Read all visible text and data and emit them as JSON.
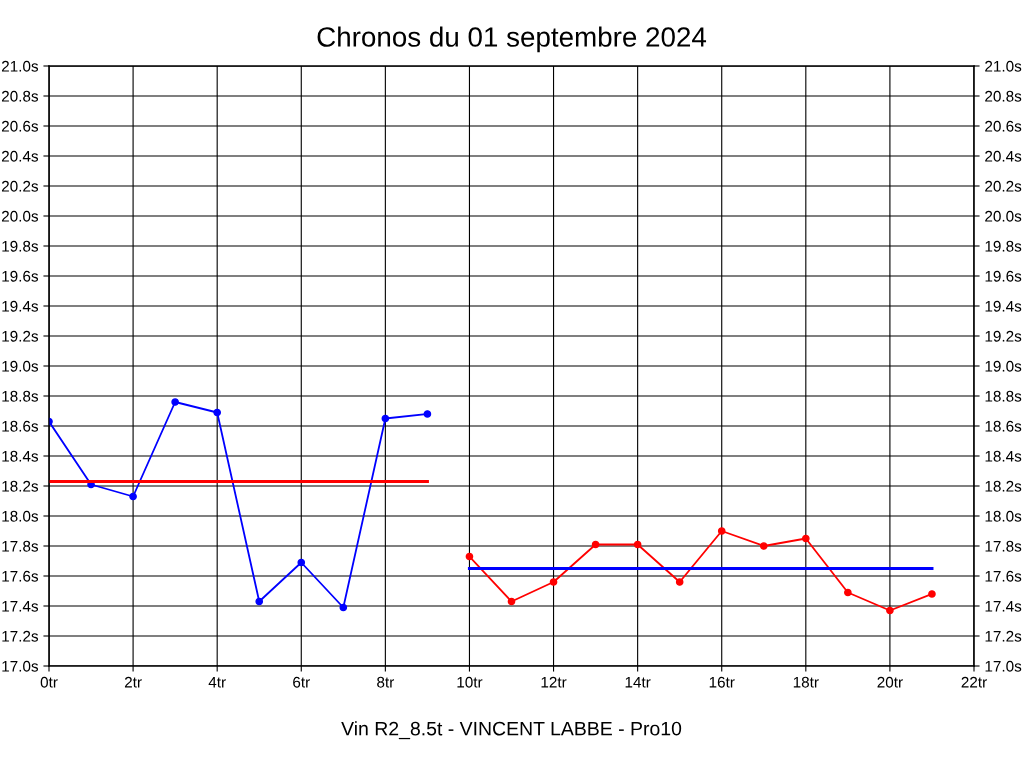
{
  "chart_data": {
    "type": "line",
    "title": "Chronos du 01 septembre 2024",
    "xlabel": "Vin R2_8.5t - VINCENT LABBE - Pro10",
    "xlim": [
      0,
      22
    ],
    "xticks": [
      {
        "value": 0,
        "label": "0tr"
      },
      {
        "value": 2,
        "label": "2tr"
      },
      {
        "value": 4,
        "label": "4tr"
      },
      {
        "value": 6,
        "label": "6tr"
      },
      {
        "value": 8,
        "label": "8tr"
      },
      {
        "value": 10,
        "label": "10tr"
      },
      {
        "value": 12,
        "label": "12tr"
      },
      {
        "value": 14,
        "label": "14tr"
      },
      {
        "value": 16,
        "label": "16tr"
      },
      {
        "value": 18,
        "label": "18tr"
      },
      {
        "value": 20,
        "label": "20tr"
      },
      {
        "value": 22,
        "label": "22tr"
      }
    ],
    "ylim": [
      17.0,
      21.0
    ],
    "yticks": [
      {
        "value": 17.0,
        "label": "17.0s"
      },
      {
        "value": 17.2,
        "label": "17.2s"
      },
      {
        "value": 17.4,
        "label": "17.4s"
      },
      {
        "value": 17.6,
        "label": "17.6s"
      },
      {
        "value": 17.8,
        "label": "17.8s"
      },
      {
        "value": 18.0,
        "label": "18.0s"
      },
      {
        "value": 18.2,
        "label": "18.2s"
      },
      {
        "value": 18.4,
        "label": "18.4s"
      },
      {
        "value": 18.6,
        "label": "18.6s"
      },
      {
        "value": 18.8,
        "label": "18.8s"
      },
      {
        "value": 19.0,
        "label": "19.0s"
      },
      {
        "value": 19.2,
        "label": "19.2s"
      },
      {
        "value": 19.4,
        "label": "19.4s"
      },
      {
        "value": 19.6,
        "label": "19.6s"
      },
      {
        "value": 19.8,
        "label": "19.8s"
      },
      {
        "value": 20.0,
        "label": "20.0s"
      },
      {
        "value": 20.2,
        "label": "20.2s"
      },
      {
        "value": 20.4,
        "label": "20.4s"
      },
      {
        "value": 20.6,
        "label": "20.6s"
      },
      {
        "value": 20.8,
        "label": "20.8s"
      },
      {
        "value": 21.0,
        "label": "21.0s"
      }
    ],
    "y2lim": [
      17.0,
      21.0
    ],
    "y2ticks": [
      {
        "value": 17.0,
        "label": "17.0s"
      },
      {
        "value": 17.2,
        "label": "17.2s"
      },
      {
        "value": 17.4,
        "label": "17.4s"
      },
      {
        "value": 17.6,
        "label": "17.6s"
      },
      {
        "value": 17.8,
        "label": "17.8s"
      },
      {
        "value": 18.0,
        "label": "18.0s"
      },
      {
        "value": 18.2,
        "label": "18.2s"
      },
      {
        "value": 18.4,
        "label": "18.4s"
      },
      {
        "value": 18.6,
        "label": "18.6s"
      },
      {
        "value": 18.8,
        "label": "18.8s"
      },
      {
        "value": 19.0,
        "label": "19.0s"
      },
      {
        "value": 19.2,
        "label": "19.2s"
      },
      {
        "value": 19.4,
        "label": "19.4s"
      },
      {
        "value": 19.6,
        "label": "19.6s"
      },
      {
        "value": 19.8,
        "label": "19.8s"
      },
      {
        "value": 20.0,
        "label": "20.0s"
      },
      {
        "value": 20.2,
        "label": "20.2s"
      },
      {
        "value": 20.4,
        "label": "20.4s"
      },
      {
        "value": 20.6,
        "label": "20.6s"
      },
      {
        "value": 20.8,
        "label": "20.8s"
      },
      {
        "value": 21.0,
        "label": "21.0s"
      }
    ],
    "grid": true,
    "legend": false,
    "series": [
      {
        "color": "#0000ff",
        "marker": "circle",
        "x": [
          0,
          1,
          2,
          3,
          4,
          5,
          6,
          7,
          8,
          9
        ],
        "values": [
          18.63,
          18.21,
          18.13,
          18.76,
          18.69,
          17.43,
          17.69,
          17.39,
          18.65,
          18.68
        ]
      },
      {
        "color": "#ff0000",
        "marker": "circle",
        "x": [
          10,
          11,
          12,
          13,
          14,
          15,
          16,
          17,
          18,
          19,
          20,
          21
        ],
        "values": [
          17.73,
          17.43,
          17.56,
          17.81,
          17.81,
          17.56,
          17.9,
          17.8,
          17.85,
          17.49,
          17.37,
          17.48
        ]
      },
      {
        "color": "#ff0000",
        "marker": "none",
        "x": [
          0,
          9
        ],
        "values": [
          18.23,
          18.23
        ]
      },
      {
        "color": "#0000ff",
        "marker": "none",
        "x": [
          10,
          21
        ],
        "values": [
          17.65,
          17.65
        ]
      }
    ]
  }
}
